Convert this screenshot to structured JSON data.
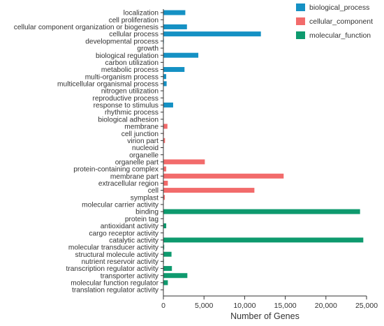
{
  "chart_data": {
    "type": "bar",
    "orientation": "horizontal",
    "xlabel": "Number of Genes",
    "ylabel": "",
    "xlim": [
      0,
      25000
    ],
    "x_ticks": [
      0,
      5000,
      10000,
      15000,
      20000,
      25000
    ],
    "x_tick_labels": [
      "0",
      "5,000",
      "10,000",
      "15,000",
      "20,000",
      "25,000"
    ],
    "grid": false,
    "legend_position": "top-right",
    "series": [
      {
        "name": "biological_process",
        "color": "#1591c4"
      },
      {
        "name": "cellular_component",
        "color": "#f26b6b"
      },
      {
        "name": "molecular_function",
        "color": "#0e9a6e"
      }
    ],
    "bars": [
      {
        "category": "localization",
        "series": "biological_process",
        "value": 2700
      },
      {
        "category": "cell proliferation",
        "series": "biological_process",
        "value": 20
      },
      {
        "category": "cellular component organization or biogenesis",
        "series": "biological_process",
        "value": 2900
      },
      {
        "category": "cellular process",
        "series": "biological_process",
        "value": 12000
      },
      {
        "category": "developmental process",
        "series": "biological_process",
        "value": 60
      },
      {
        "category": "growth",
        "series": "biological_process",
        "value": 30
      },
      {
        "category": "biological regulation",
        "series": "biological_process",
        "value": 4300
      },
      {
        "category": "carbon utilization",
        "series": "biological_process",
        "value": 10
      },
      {
        "category": "metabolic process",
        "series": "biological_process",
        "value": 2600
      },
      {
        "category": "multi-organism process",
        "series": "biological_process",
        "value": 350
      },
      {
        "category": "multicellular organismal process",
        "series": "biological_process",
        "value": 400
      },
      {
        "category": "nitrogen utilization",
        "series": "biological_process",
        "value": 20
      },
      {
        "category": "reproductive process",
        "series": "biological_process",
        "value": 40
      },
      {
        "category": "response to stimulus",
        "series": "biological_process",
        "value": 1200
      },
      {
        "category": "rhythmic process",
        "series": "biological_process",
        "value": 20
      },
      {
        "category": "biological adhesion",
        "series": "biological_process",
        "value": 20
      },
      {
        "category": "membrane",
        "series": "cellular_component",
        "value": 500
      },
      {
        "category": "cell junction",
        "series": "cellular_component",
        "value": 60
      },
      {
        "category": "virion part",
        "series": "cellular_component",
        "value": 200
      },
      {
        "category": "nucleoid",
        "series": "cellular_component",
        "value": 10
      },
      {
        "category": "organelle",
        "series": "cellular_component",
        "value": 30
      },
      {
        "category": "organelle part",
        "series": "cellular_component",
        "value": 5100
      },
      {
        "category": "protein-containing complex",
        "series": "cellular_component",
        "value": 350
      },
      {
        "category": "membrane part",
        "series": "cellular_component",
        "value": 14800
      },
      {
        "category": "extracellular region",
        "series": "cellular_component",
        "value": 550
      },
      {
        "category": "cell",
        "series": "cellular_component",
        "value": 11200
      },
      {
        "category": "symplast",
        "series": "cellular_component",
        "value": 180
      },
      {
        "category": "molecular carrier activity",
        "series": "molecular_function",
        "value": 10
      },
      {
        "category": "binding",
        "series": "molecular_function",
        "value": 24200
      },
      {
        "category": "protein tag",
        "series": "molecular_function",
        "value": 20
      },
      {
        "category": "antioxidant activity",
        "series": "molecular_function",
        "value": 350
      },
      {
        "category": "cargo receptor activity",
        "series": "molecular_function",
        "value": 20
      },
      {
        "category": "catalytic activity",
        "series": "molecular_function",
        "value": 24600
      },
      {
        "category": "molecular transducer activity",
        "series": "molecular_function",
        "value": 100
      },
      {
        "category": "structural molecule activity",
        "series": "molecular_function",
        "value": 1000
      },
      {
        "category": "nutrient reservoir activity",
        "series": "molecular_function",
        "value": 60
      },
      {
        "category": "transcription regulator activity",
        "series": "molecular_function",
        "value": 1050
      },
      {
        "category": "transporter activity",
        "series": "molecular_function",
        "value": 2950
      },
      {
        "category": "molecular function regulator",
        "series": "molecular_function",
        "value": 550
      },
      {
        "category": "translation regulator activity",
        "series": "molecular_function",
        "value": 15
      }
    ]
  }
}
